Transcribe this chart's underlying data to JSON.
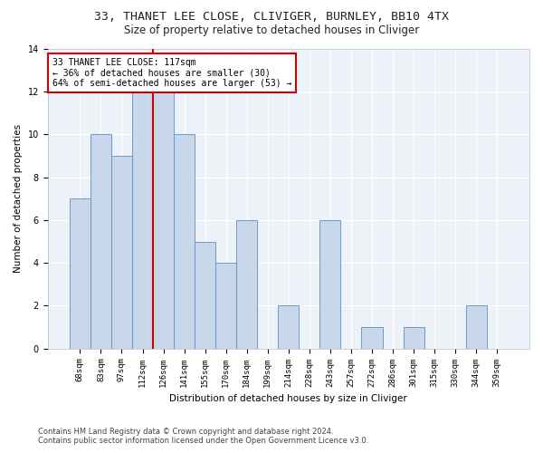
{
  "title_line1": "33, THANET LEE CLOSE, CLIVIGER, BURNLEY, BB10 4TX",
  "title_line2": "Size of property relative to detached houses in Cliviger",
  "xlabel": "Distribution of detached houses by size in Cliviger",
  "ylabel": "Number of detached properties",
  "categories": [
    "68sqm",
    "83sqm",
    "97sqm",
    "112sqm",
    "126sqm",
    "141sqm",
    "155sqm",
    "170sqm",
    "184sqm",
    "199sqm",
    "214sqm",
    "228sqm",
    "243sqm",
    "257sqm",
    "272sqm",
    "286sqm",
    "301sqm",
    "315sqm",
    "330sqm",
    "344sqm",
    "359sqm"
  ],
  "values": [
    7,
    10,
    9,
    12,
    12,
    10,
    5,
    4,
    6,
    0,
    2,
    0,
    6,
    0,
    1,
    0,
    1,
    0,
    0,
    2,
    0
  ],
  "bar_color": "#c8d8ea",
  "bar_edge_color": "#5b8fc9",
  "vline_x_index": 3,
  "vline_color": "#cc0000",
  "annotation_text": "33 THANET LEE CLOSE: 117sqm\n← 36% of detached houses are smaller (30)\n64% of semi-detached houses are larger (53) →",
  "annotation_box_color": "#ffffff",
  "annotation_box_edge_color": "#cc0000",
  "ylim": [
    0,
    14
  ],
  "yticks": [
    0,
    2,
    4,
    6,
    8,
    10,
    12,
    14
  ],
  "footer_line1": "Contains HM Land Registry data © Crown copyright and database right 2024.",
  "footer_line2": "Contains public sector information licensed under the Open Government Licence v3.0.",
  "bg_color": "#ffffff",
  "plot_bg_color": "#edf2f9",
  "grid_color": "#ffffff",
  "title_fontsize": 9.5,
  "subtitle_fontsize": 8.5,
  "axis_label_fontsize": 7.5,
  "tick_fontsize": 6.5,
  "annotation_fontsize": 7.0,
  "footer_fontsize": 6.0
}
